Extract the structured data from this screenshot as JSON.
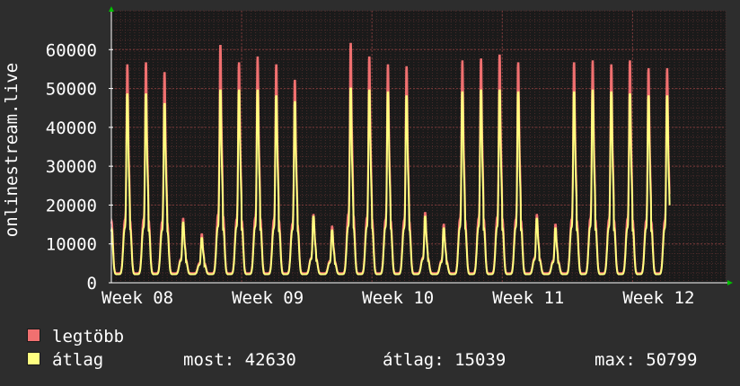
{
  "chart_data": {
    "type": "line",
    "title": "",
    "ylabel": "onlinestream.live",
    "xlabel": "",
    "ylim": [
      0,
      70000
    ],
    "y_ticks": [
      0,
      10000,
      20000,
      30000,
      40000,
      50000,
      60000
    ],
    "y_tick_labels": [
      "0",
      "10000",
      "20000",
      "30000",
      "40000",
      "50000",
      "60000"
    ],
    "x_range_days": [
      0,
      33
    ],
    "x_ticks": [
      {
        "day": 0,
        "label": "Week 08"
      },
      {
        "day": 7,
        "label": "Week 09"
      },
      {
        "day": 14,
        "label": "Week 10"
      },
      {
        "day": 21,
        "label": "Week 11"
      },
      {
        "day": 28,
        "label": "Week 12"
      }
    ],
    "grid": true,
    "background": "#1a1a1a",
    "series": [
      {
        "name": "legtöbb",
        "color": "#f07070",
        "daily_peaks": [
          56000,
          56500,
          54000,
          16500,
          12500,
          61000,
          56500,
          58000,
          56000,
          52000,
          17500,
          14500,
          61500,
          58000,
          56000,
          55500,
          18000,
          15000,
          57000,
          57500,
          58500,
          56500,
          17500,
          15000,
          56500,
          57000,
          56000,
          57000,
          55000
        ],
        "daily_min": 2500
      },
      {
        "name": "átlag",
        "color": "#ffff80",
        "daily_peaks": [
          48500,
          48500,
          46000,
          15500,
          11500,
          49500,
          49500,
          49500,
          48000,
          46500,
          17000,
          13500,
          50000,
          49500,
          49000,
          48000,
          17000,
          14000,
          49000,
          49500,
          49500,
          49000,
          16500,
          14000,
          49000,
          49500,
          49000,
          48500,
          48000
        ],
        "daily_min": 2200
      }
    ]
  },
  "legend": [
    {
      "name": "legtöbb",
      "color": "#f07070"
    },
    {
      "name": "átlag",
      "color": "#ffff80",
      "stats": {
        "most": "most: 42630",
        "atlag": "átlag: 15039",
        "max": "max: 50799"
      }
    }
  ]
}
